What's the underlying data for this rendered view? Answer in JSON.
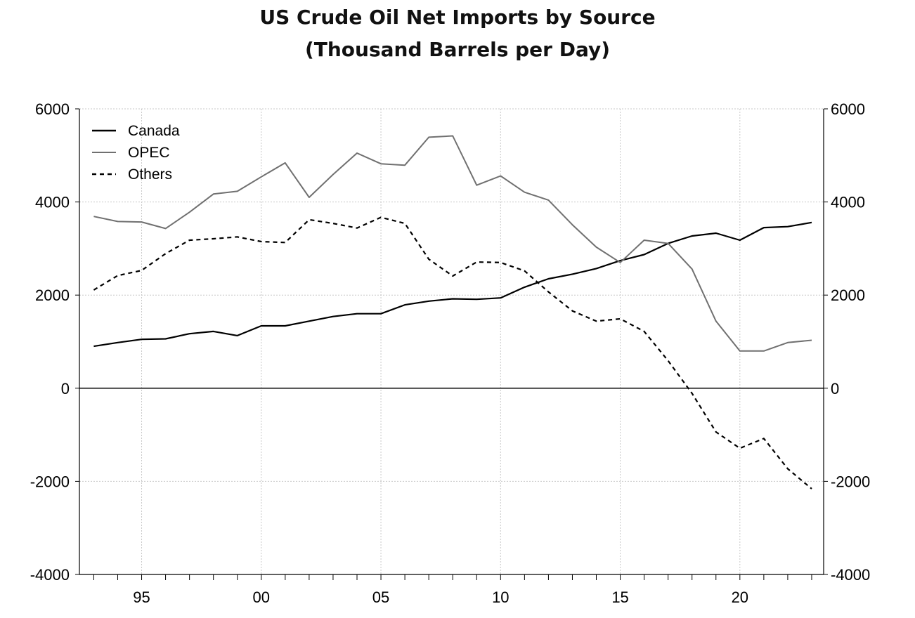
{
  "chart_data": {
    "type": "line",
    "title": "US Crude Oil Net Imports by Source",
    "subtitle": "(Thousand Barrels per Day)",
    "xlabel": "",
    "ylabel": "",
    "x": [
      1993,
      1994,
      1995,
      1996,
      1997,
      1998,
      1999,
      2000,
      2001,
      2002,
      2003,
      2004,
      2005,
      2006,
      2007,
      2008,
      2009,
      2010,
      2011,
      2012,
      2013,
      2014,
      2015,
      2016,
      2017,
      2018,
      2019,
      2020,
      2021,
      2022,
      2023
    ],
    "xlim": [
      1992.4,
      2023.5
    ],
    "x_ticks": [
      1995,
      2000,
      2005,
      2010,
      2015,
      2020
    ],
    "x_tick_labels": [
      "95",
      "00",
      "05",
      "10",
      "15",
      "20"
    ],
    "ylim": [
      -4000,
      6000
    ],
    "y_ticks": [
      -4000,
      -2000,
      0,
      2000,
      4000,
      6000
    ],
    "y_tick_labels": [
      "-4000",
      "-2000",
      "0",
      "2000",
      "4000",
      "6000"
    ],
    "y_axis_sides": [
      "left",
      "right"
    ],
    "grid": true,
    "legend_position": "top-left",
    "series": [
      {
        "name": "Canada",
        "color": "#000000",
        "dash": "solid",
        "values": [
          900,
          980,
          1050,
          1060,
          1170,
          1220,
          1130,
          1340,
          1340,
          1440,
          1540,
          1600,
          1600,
          1790,
          1870,
          1920,
          1910,
          1940,
          2170,
          2350,
          2450,
          2570,
          2740,
          2870,
          3110,
          3270,
          3330,
          3180,
          3450,
          3470,
          3560
        ]
      },
      {
        "name": "OPEC",
        "color": "#707070",
        "dash": "solid",
        "values": [
          3690,
          3580,
          3570,
          3430,
          3780,
          4170,
          4230,
          4540,
          4840,
          4100,
          4590,
          5050,
          4820,
          4790,
          5390,
          5420,
          4360,
          4560,
          4210,
          4040,
          3510,
          3030,
          2700,
          3180,
          3110,
          2560,
          1440,
          800,
          800,
          980,
          1030
        ]
      },
      {
        "name": "Others",
        "color": "#000000",
        "dash": "dashed",
        "values": [
          2110,
          2420,
          2530,
          2890,
          3180,
          3210,
          3250,
          3150,
          3130,
          3620,
          3540,
          3440,
          3670,
          3540,
          2770,
          2410,
          2710,
          2700,
          2520,
          2070,
          1660,
          1440,
          1490,
          1220,
          590,
          -110,
          -940,
          -1290,
          -1080,
          -1730,
          -2160
        ]
      }
    ]
  }
}
